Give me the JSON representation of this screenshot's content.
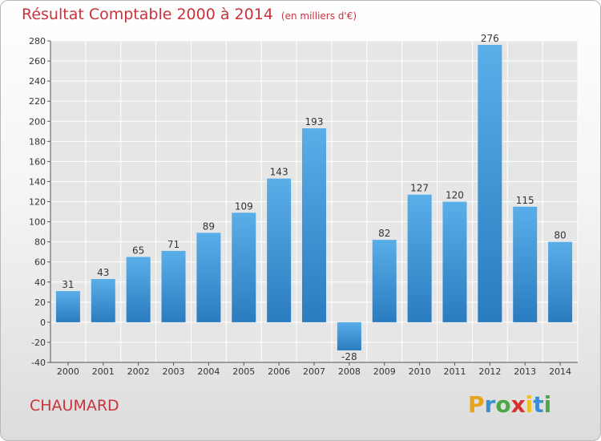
{
  "chart_data": {
    "type": "bar",
    "title": "Résultat Comptable 2000 à 2014",
    "subtitle": "(en milliers d'€)",
    "categories": [
      "2000",
      "2001",
      "2002",
      "2003",
      "2004",
      "2005",
      "2006",
      "2007",
      "2008",
      "2009",
      "2010",
      "2011",
      "2012",
      "2013",
      "2014"
    ],
    "values": [
      31,
      43,
      65,
      71,
      89,
      109,
      143,
      193,
      -28,
      82,
      127,
      120,
      276,
      115,
      80
    ],
    "ylim": [
      -40,
      280
    ],
    "yticks": [
      -40,
      -20,
      0,
      20,
      40,
      60,
      80,
      100,
      120,
      140,
      160,
      180,
      200,
      220,
      240,
      260,
      280
    ],
    "grid": true,
    "colors": {
      "bar_top": "#5aaee8",
      "bar_bottom": "#2a7cc0",
      "grid": "#ffffff",
      "title": "#c8333d"
    }
  },
  "footer": {
    "place": "CHAUMARD",
    "logo": {
      "letters": [
        "P",
        "r",
        "o",
        "x",
        "i",
        "t",
        "i"
      ],
      "colors": [
        "#e8a21c",
        "#3a8fd4",
        "#4aa846",
        "#d8302a",
        "#f0c020",
        "#3a8fd4",
        "#4aa846"
      ]
    }
  }
}
